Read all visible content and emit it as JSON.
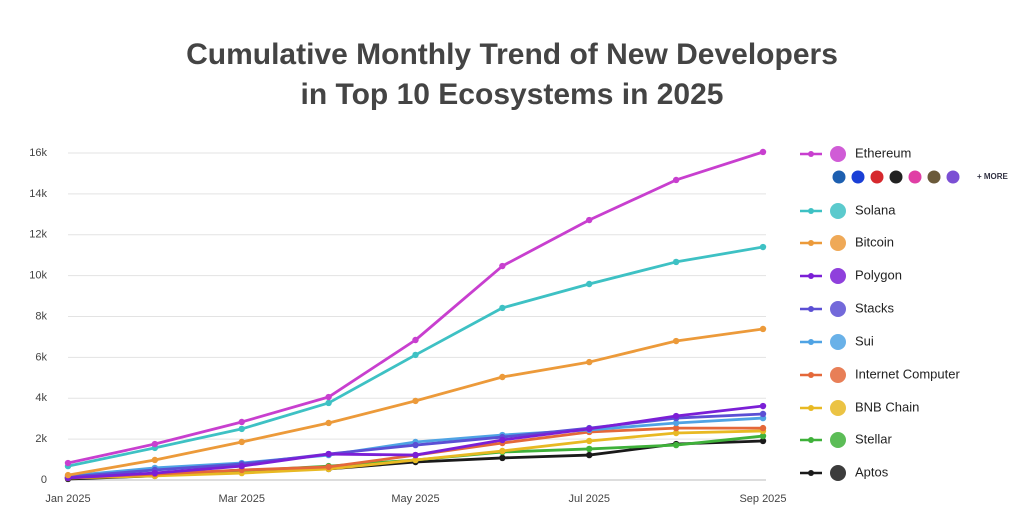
{
  "chart_data": {
    "type": "line",
    "title": [
      "Cumulative Monthly Trend of New Developers",
      "in Top 10 Ecosystems in 2025"
    ],
    "categories": [
      "Jan 2025",
      null,
      "Mar 2025",
      null,
      "May 2025",
      null,
      "Jul 2025",
      null,
      "Sep 2025"
    ],
    "ylim": [
      0,
      16000
    ],
    "yticks": [
      0,
      {
        "value": 2000,
        "label": "2k"
      },
      {
        "value": 4000,
        "label": "4k"
      },
      {
        "value": 6000,
        "label": "6k"
      },
      {
        "value": 8000,
        "label": "8k"
      },
      {
        "value": 10000,
        "label": "10k"
      },
      {
        "value": 12000,
        "label": "12k"
      },
      {
        "value": 14000,
        "label": "14k"
      },
      {
        "value": 16000,
        "label": "16k"
      }
    ],
    "grid": true,
    "legend": "right",
    "legend_more": "+ MORE",
    "series": [
      {
        "name": "Ethereum",
        "color": "#c83fcf",
        "values": [
          830,
          1760,
          2840,
          4060,
          6850,
          10470,
          12720,
          14680,
          16050
        ]
      },
      {
        "name": "Solana",
        "color": "#3ec1c4",
        "values": [
          680,
          1570,
          2500,
          3770,
          6120,
          8420,
          9590,
          10670,
          11400
        ]
      },
      {
        "name": "Bitcoin",
        "color": "#ec9a3a",
        "values": [
          240,
          980,
          1860,
          2790,
          3870,
          5040,
          5770,
          6800,
          7390
        ]
      },
      {
        "name": "Polygon",
        "color": "#7b1fd6",
        "values": [
          100,
          340,
          680,
          1270,
          1220,
          1960,
          2500,
          3130,
          3620
        ]
      },
      {
        "name": "Stacks",
        "color": "#5b4fd4",
        "values": [
          150,
          490,
          780,
          1270,
          1710,
          2100,
          2540,
          3030,
          3230
        ]
      },
      {
        "name": "Sui",
        "color": "#4fa3e4",
        "values": [
          200,
          590,
          830,
          1220,
          1860,
          2200,
          2450,
          2790,
          3030
        ]
      },
      {
        "name": "Internet Computer",
        "color": "#e4683a",
        "values": [
          100,
          290,
          490,
          640,
          1220,
          1810,
          2350,
          2540,
          2540
        ]
      },
      {
        "name": "BNB Chain",
        "color": "#e8b923",
        "values": [
          100,
          200,
          340,
          540,
          980,
          1420,
          1910,
          2300,
          2400
        ]
      },
      {
        "name": "Stellar",
        "color": "#3fb13a",
        "values": [
          100,
          240,
          440,
          680,
          980,
          1370,
          1520,
          1710,
          2150
        ]
      },
      {
        "name": "Aptos",
        "color": "#1a1a1a",
        "values": [
          50,
          200,
          490,
          540,
          880,
          1080,
          1220,
          1760,
          1910
        ]
      }
    ]
  }
}
